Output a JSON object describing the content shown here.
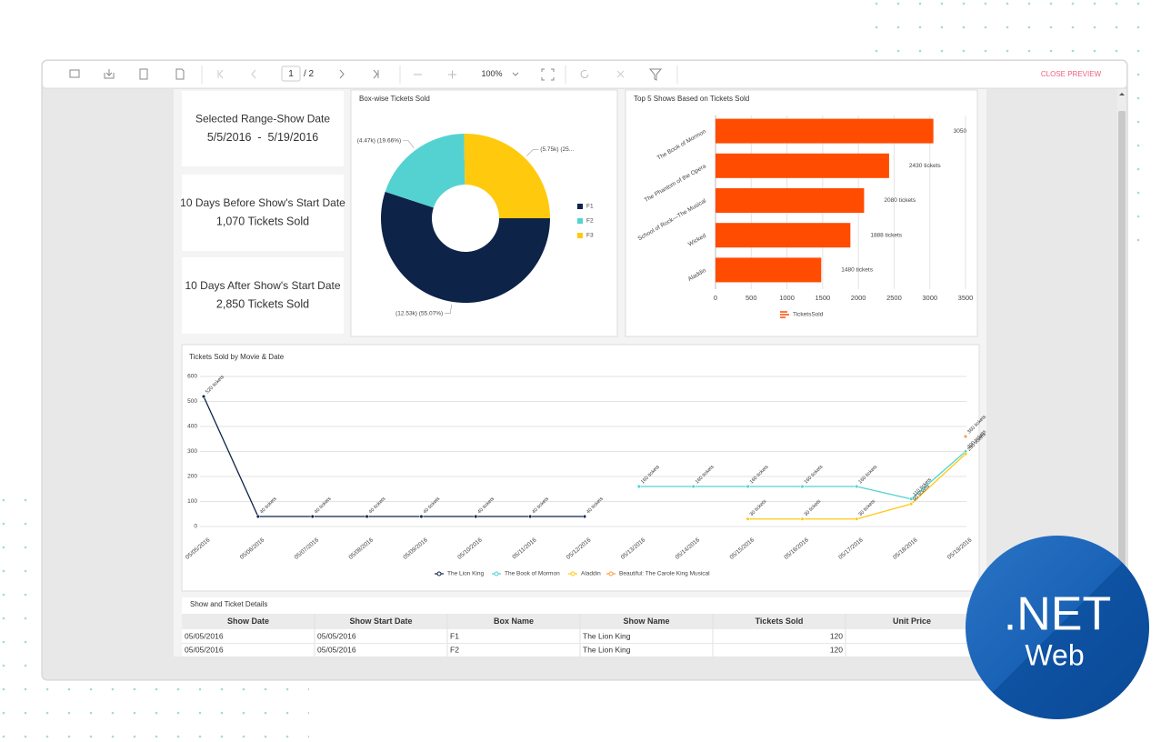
{
  "toolbar": {
    "page": "1",
    "page_count": "/ 2",
    "zoom": "100%",
    "close": "CLOSE PREVIEW"
  },
  "cards": [
    {
      "title": "Selected Range-Show Date",
      "value": "5/5/2016  -  5/19/2016"
    },
    {
      "title": "10 Days Before Show's Start Date",
      "value": "1,070 Tickets Sold"
    },
    {
      "title": "10 Days After Show's Start Date",
      "value": "2,850 Tickets Sold"
    }
  ],
  "chart_data": [
    {
      "type": "pie",
      "title": "Box-wise Tickets Sold",
      "categories": [
        "F1",
        "F2",
        "F3"
      ],
      "values": [
        12.53,
        4.47,
        5.75
      ],
      "value_labels": [
        "(12.53k) (55.07%)",
        "(4.47k) (19.66%)",
        "(5.75k) (25..."
      ],
      "colors": [
        "#0d2348",
        "#54d2d2",
        "#ffc90e"
      ]
    },
    {
      "type": "bar",
      "title": "Top 5 Shows Based on Tickets Sold",
      "categories": [
        "The Book of Mormon",
        "The Phantom of the Opera",
        "School of Rock—The Musical",
        "Wicked",
        "Aladdin"
      ],
      "series": [
        {
          "name": "TicketsSold",
          "color": "#ff4c00",
          "values": [
            3050,
            2430,
            2080,
            1888,
            1480
          ],
          "value_labels": [
            "3050",
            "2430 tickets",
            "2080 tickets",
            "1888 tickets",
            "1480 tickets"
          ]
        }
      ],
      "xlim": [
        0,
        3500
      ],
      "xticks": [
        0,
        500,
        1000,
        1500,
        2000,
        2500,
        3000,
        3500
      ],
      "grid": true
    },
    {
      "type": "line",
      "title": "Tickets Sold by Movie & Date",
      "categories": [
        "05/05/2016",
        "05/06/2016",
        "05/07/2016",
        "05/08/2016",
        "05/09/2016",
        "05/10/2016",
        "05/11/2016",
        "05/12/2016",
        "05/13/2016",
        "05/14/2016",
        "05/15/2016",
        "05/16/2016",
        "05/17/2016",
        "05/18/2016",
        "05/19/2016"
      ],
      "series": [
        {
          "name": "The Lion King",
          "color": "#0d2348",
          "values": [
            520,
            40,
            40,
            40,
            40,
            40,
            40,
            40,
            null,
            null,
            null,
            null,
            null,
            null,
            null
          ],
          "value_labels": [
            "520 tickets",
            "40 tickets",
            "40 tickets",
            "40 tickets",
            "40 tickets",
            "40 tickets",
            "40 tickets",
            "40 tickets",
            null,
            null,
            null,
            null,
            null,
            null,
            null
          ]
        },
        {
          "name": "The Book of Mormon",
          "color": "#54d2d2",
          "values": [
            null,
            null,
            null,
            null,
            null,
            null,
            null,
            null,
            160,
            160,
            160,
            160,
            160,
            110,
            300
          ],
          "value_labels": [
            null,
            null,
            null,
            null,
            null,
            null,
            null,
            null,
            "160 tickets",
            "160 tickets",
            "160 tickets",
            "160 tickets",
            "160 tickets",
            "110 tickets",
            "300 tickets"
          ]
        },
        {
          "name": "Aladdin",
          "color": "#ffc90e",
          "values": [
            null,
            null,
            null,
            null,
            null,
            null,
            null,
            null,
            null,
            null,
            30,
            30,
            30,
            90,
            290
          ],
          "value_labels": [
            null,
            null,
            null,
            null,
            null,
            null,
            null,
            null,
            null,
            null,
            "30 tickets",
            "30 tickets",
            "30 tickets",
            "90 tickets",
            "290 tickets"
          ]
        },
        {
          "name": "Beautiful: The Carole King Musical",
          "color": "#ff9a3c",
          "values": [
            null,
            null,
            null,
            null,
            null,
            null,
            null,
            null,
            null,
            null,
            null,
            null,
            null,
            null,
            360
          ],
          "value_labels": [
            null,
            null,
            null,
            null,
            null,
            null,
            null,
            null,
            null,
            null,
            null,
            null,
            null,
            null,
            "360 tickets"
          ]
        }
      ],
      "ylim": [
        0,
        600
      ],
      "yticks": [
        0,
        100,
        200,
        300,
        400,
        500,
        600
      ],
      "grid": true
    }
  ],
  "table": {
    "title": "Show and Ticket Details",
    "columns": [
      "Show Date",
      "Show Start Date",
      "Box Name",
      "Show Name",
      "Tickets Sold",
      "Unit Price"
    ],
    "rows": [
      [
        "05/05/2016",
        "05/05/2016",
        "F1",
        "The Lion King",
        120
      ],
      [
        "05/05/2016",
        "05/05/2016",
        "F2",
        "The Lion King",
        120
      ]
    ]
  },
  "badge": {
    "title": ".NET",
    "subtitle": "Web"
  }
}
